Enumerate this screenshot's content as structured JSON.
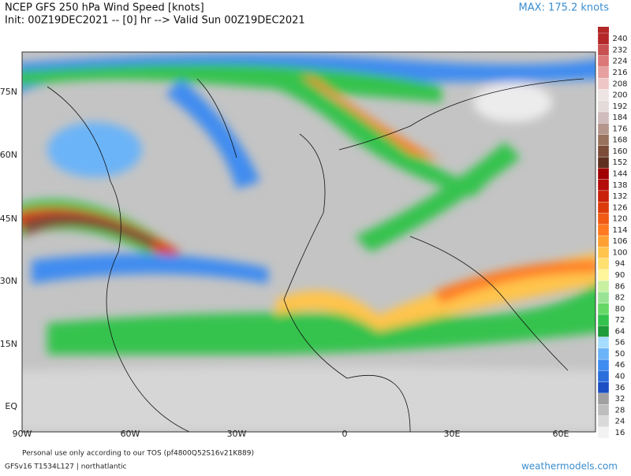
{
  "header": {
    "title": "NCEP GFS 250 hPa Wind Speed [knots]",
    "init": "Init: 00Z19DEC2021 -- [0] hr --> Valid Sun 00Z19DEC2021",
    "max": "MAX: 175.2 knots"
  },
  "map": {
    "lat_labels": [
      "75N",
      "60N",
      "45N",
      "30N",
      "15N",
      "EQ"
    ],
    "lon_labels": [
      "90W",
      "60W",
      "30W",
      "0",
      "30E",
      "60E"
    ]
  },
  "colorbar": {
    "levels": [
      16,
      24,
      28,
      32,
      36,
      40,
      46,
      50,
      56,
      64,
      72,
      80,
      82,
      86,
      90,
      94,
      100,
      106,
      114,
      120,
      126,
      132,
      138,
      144,
      152,
      160,
      168,
      176,
      184,
      192,
      200,
      208,
      216,
      224,
      232,
      240
    ],
    "colors": [
      "#f2f2f2",
      "#d9d9d9",
      "#bdbdbd",
      "#a0a0a0",
      "#1c4fc4",
      "#2a6edc",
      "#3f8cf0",
      "#6cb4f8",
      "#a6dcff",
      "#1e9c3a",
      "#34c34e",
      "#66d866",
      "#98e494",
      "#c8f0a0",
      "#fff59a",
      "#ffe070",
      "#ffc44c",
      "#ffa032",
      "#ff7a20",
      "#f05a14",
      "#dc3c0c",
      "#c8200a",
      "#b40c0a",
      "#a00000",
      "#5e3020",
      "#7c4c38",
      "#98725c",
      "#b4968c",
      "#d0bcbc",
      "#e4dada",
      "#efe4e4",
      "#efc6c6",
      "#e6a0a0",
      "#dc7878",
      "#c85050",
      "#b42828"
    ]
  },
  "footer": {
    "tos": "Personal use only according to our TOS (pf4800Q52S16v21K889)",
    "model": "GFSv16 T1534L127 | northatlantic",
    "brand": "weathermodels.com"
  }
}
